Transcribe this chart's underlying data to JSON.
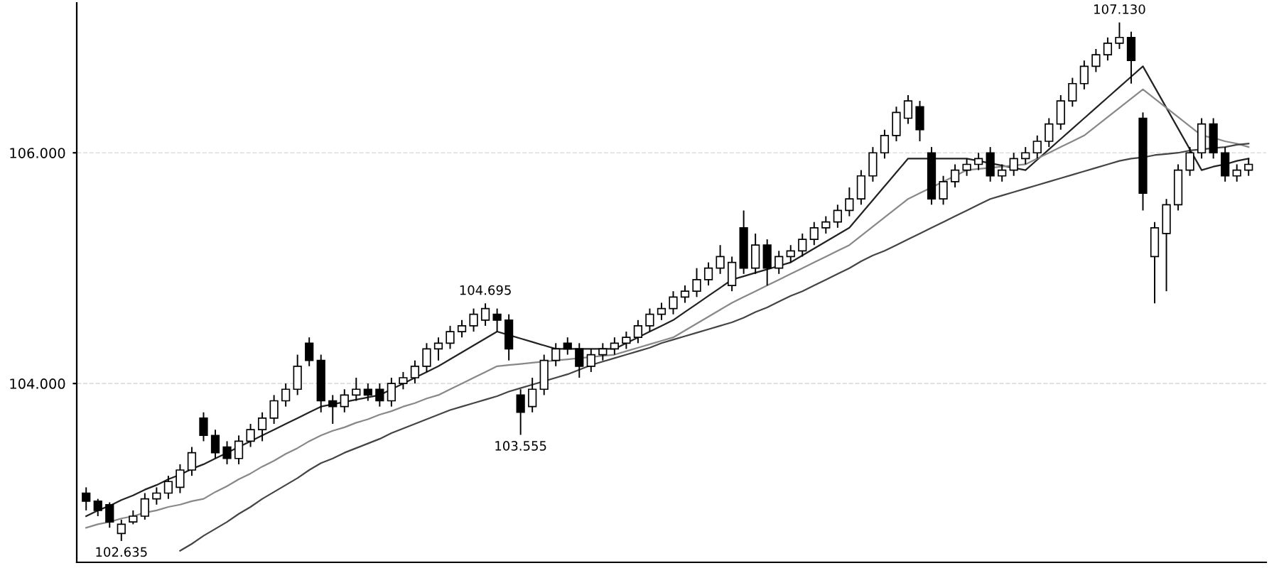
{
  "chart_data": {
    "type": "candlestick",
    "categories": [
      null,
      null,
      null,
      null,
      null,
      null,
      null,
      null,
      null,
      null,
      null,
      null,
      null,
      null,
      null,
      null,
      null,
      null,
      null,
      null,
      null,
      null,
      null,
      null,
      null,
      null,
      null,
      null,
      null,
      null,
      null,
      null,
      null,
      null,
      null,
      null,
      null,
      null,
      null,
      null,
      null,
      null,
      null,
      null,
      null,
      null,
      null,
      null,
      null,
      null,
      null,
      null,
      null,
      null,
      null,
      null,
      null,
      null,
      null,
      null,
      null,
      null,
      null,
      null,
      null,
      null,
      null,
      null,
      null,
      null,
      null,
      null,
      null,
      null,
      null,
      null,
      null,
      null,
      null,
      null,
      null,
      null,
      null,
      null,
      null,
      null,
      null,
      null,
      null,
      null,
      null,
      null,
      null,
      null,
      null,
      null,
      null,
      null,
      null,
      null
    ],
    "color": "#000000",
    "ohlc": [
      [
        103.05,
        103.1,
        102.9,
        102.98
      ],
      [
        102.98,
        103.0,
        102.85,
        102.9
      ],
      [
        102.95,
        102.97,
        102.75,
        102.8
      ],
      [
        102.7,
        102.82,
        102.635,
        102.78
      ],
      [
        102.8,
        102.9,
        102.78,
        102.85
      ],
      [
        102.85,
        103.05,
        102.82,
        103.0
      ],
      [
        103.0,
        103.1,
        102.95,
        103.05
      ],
      [
        103.05,
        103.2,
        103.0,
        103.15
      ],
      [
        103.1,
        103.3,
        103.05,
        103.25
      ],
      [
        103.25,
        103.45,
        103.2,
        103.4
      ],
      [
        103.7,
        103.75,
        103.5,
        103.55
      ],
      [
        103.55,
        103.6,
        103.35,
        103.4
      ],
      [
        103.45,
        103.5,
        103.3,
        103.35
      ],
      [
        103.35,
        103.55,
        103.3,
        103.5
      ],
      [
        103.5,
        103.65,
        103.45,
        103.6
      ],
      [
        103.6,
        103.75,
        103.5,
        103.7
      ],
      [
        103.7,
        103.9,
        103.65,
        103.85
      ],
      [
        103.85,
        104.0,
        103.8,
        103.95
      ],
      [
        103.95,
        104.25,
        103.9,
        104.15
      ],
      [
        104.35,
        104.4,
        104.15,
        104.2
      ],
      [
        104.2,
        104.25,
        103.75,
        103.85
      ],
      [
        103.85,
        103.9,
        103.65,
        103.8
      ],
      [
        103.8,
        103.95,
        103.75,
        103.9
      ],
      [
        103.9,
        104.05,
        103.85,
        103.95
      ],
      [
        103.95,
        104.0,
        103.85,
        103.9
      ],
      [
        103.95,
        104.0,
        103.8,
        103.85
      ],
      [
        103.85,
        104.05,
        103.8,
        104.0
      ],
      [
        104.0,
        104.1,
        103.95,
        104.05
      ],
      [
        104.05,
        104.2,
        104.0,
        104.15
      ],
      [
        104.15,
        104.35,
        104.1,
        104.3
      ],
      [
        104.3,
        104.4,
        104.2,
        104.35
      ],
      [
        104.35,
        104.5,
        104.3,
        104.45
      ],
      [
        104.45,
        104.55,
        104.4,
        104.5
      ],
      [
        104.5,
        104.65,
        104.45,
        104.6
      ],
      [
        104.55,
        104.695,
        104.5,
        104.65
      ],
      [
        104.6,
        104.65,
        104.45,
        104.55
      ],
      [
        104.55,
        104.6,
        104.2,
        104.3
      ],
      [
        103.9,
        103.95,
        103.555,
        103.75
      ],
      [
        103.8,
        104.05,
        103.75,
        103.95
      ],
      [
        103.95,
        104.25,
        103.9,
        104.2
      ],
      [
        104.2,
        104.35,
        104.15,
        104.3
      ],
      [
        104.35,
        104.4,
        104.25,
        104.3
      ],
      [
        104.3,
        104.35,
        104.05,
        104.15
      ],
      [
        104.15,
        104.3,
        104.1,
        104.25
      ],
      [
        104.25,
        104.35,
        104.2,
        104.3
      ],
      [
        104.3,
        104.4,
        104.25,
        104.35
      ],
      [
        104.35,
        104.45,
        104.3,
        104.4
      ],
      [
        104.4,
        104.55,
        104.35,
        104.5
      ],
      [
        104.5,
        104.65,
        104.45,
        104.6
      ],
      [
        104.6,
        104.7,
        104.55,
        104.65
      ],
      [
        104.65,
        104.8,
        104.6,
        104.75
      ],
      [
        104.75,
        104.85,
        104.7,
        104.8
      ],
      [
        104.8,
        105.0,
        104.75,
        104.9
      ],
      [
        104.9,
        105.05,
        104.85,
        105.0
      ],
      [
        105.0,
        105.2,
        104.95,
        105.1
      ],
      [
        104.85,
        105.1,
        104.8,
        105.05
      ],
      [
        105.35,
        105.5,
        104.95,
        105.0
      ],
      [
        105.0,
        105.3,
        104.95,
        105.2
      ],
      [
        105.2,
        105.25,
        104.85,
        105.0
      ],
      [
        105.0,
        105.15,
        104.95,
        105.1
      ],
      [
        105.1,
        105.2,
        105.05,
        105.15
      ],
      [
        105.15,
        105.3,
        105.1,
        105.25
      ],
      [
        105.25,
        105.4,
        105.2,
        105.35
      ],
      [
        105.35,
        105.45,
        105.3,
        105.4
      ],
      [
        105.4,
        105.55,
        105.35,
        105.5
      ],
      [
        105.5,
        105.7,
        105.45,
        105.6
      ],
      [
        105.6,
        105.85,
        105.55,
        105.8
      ],
      [
        105.8,
        106.05,
        105.75,
        106.0
      ],
      [
        106.0,
        106.2,
        105.95,
        106.15
      ],
      [
        106.15,
        106.4,
        106.1,
        106.35
      ],
      [
        106.3,
        106.5,
        106.25,
        106.45
      ],
      [
        106.4,
        106.45,
        106.1,
        106.2
      ],
      [
        106.0,
        106.05,
        105.55,
        105.6
      ],
      [
        105.6,
        105.8,
        105.55,
        105.75
      ],
      [
        105.75,
        105.9,
        105.7,
        105.85
      ],
      [
        105.85,
        105.95,
        105.8,
        105.9
      ],
      [
        105.9,
        106.0,
        105.85,
        105.95
      ],
      [
        106.0,
        106.05,
        105.75,
        105.8
      ],
      [
        105.8,
        105.9,
        105.75,
        105.85
      ],
      [
        105.85,
        106.0,
        105.8,
        105.95
      ],
      [
        105.95,
        106.05,
        105.9,
        106.0
      ],
      [
        106.0,
        106.15,
        105.95,
        106.1
      ],
      [
        106.1,
        106.3,
        106.05,
        106.25
      ],
      [
        106.25,
        106.5,
        106.2,
        106.45
      ],
      [
        106.45,
        106.65,
        106.4,
        106.6
      ],
      [
        106.6,
        106.8,
        106.55,
        106.75
      ],
      [
        106.75,
        106.9,
        106.7,
        106.85
      ],
      [
        106.85,
        107.0,
        106.8,
        106.95
      ],
      [
        106.95,
        107.13,
        106.9,
        107.0
      ],
      [
        107.0,
        107.05,
        106.6,
        106.8
      ],
      [
        106.3,
        106.35,
        105.5,
        105.65
      ],
      [
        105.1,
        105.4,
        104.695,
        105.35
      ],
      [
        105.3,
        105.6,
        104.8,
        105.55
      ],
      [
        105.55,
        105.9,
        105.5,
        105.85
      ],
      [
        105.85,
        106.05,
        105.8,
        106.0
      ],
      [
        106.0,
        106.3,
        105.95,
        106.25
      ],
      [
        106.25,
        106.3,
        105.95,
        106.0
      ],
      [
        106.0,
        106.05,
        105.75,
        105.8
      ],
      [
        105.8,
        105.9,
        105.75,
        105.85
      ],
      [
        105.85,
        105.95,
        105.8,
        105.9
      ]
    ],
    "series": [
      {
        "type": "line",
        "color": "#222222",
        "values": [
          102.85,
          102.9,
          102.94,
          102.99,
          103.03,
          103.08,
          103.12,
          103.17,
          103.21,
          103.26,
          103.3,
          103.35,
          103.4,
          103.45,
          103.5,
          103.55,
          103.6,
          103.65,
          103.7,
          103.75,
          103.8,
          103.82,
          103.84,
          103.86,
          103.88,
          103.9,
          103.95,
          104.0,
          104.05,
          104.1,
          104.15,
          104.21,
          104.27,
          104.33,
          104.39,
          104.45,
          104.42,
          104.39,
          104.36,
          104.33,
          104.3,
          104.3,
          104.3,
          104.3,
          104.3,
          104.3,
          104.35,
          104.4,
          104.45,
          104.5,
          104.55,
          104.62,
          104.69,
          104.76,
          104.83,
          104.9,
          104.93,
          104.96,
          104.99,
          105.02,
          105.05,
          105.11,
          105.17,
          105.23,
          105.29,
          105.35,
          105.47,
          105.59,
          105.71,
          105.83,
          105.95,
          105.95,
          105.95,
          105.95,
          105.95,
          105.95,
          105.93,
          105.91,
          105.89,
          105.87,
          105.85,
          105.94,
          106.03,
          106.12,
          106.21,
          106.3,
          106.39,
          106.48,
          106.57,
          106.66,
          106.75,
          106.57,
          106.39,
          106.21,
          106.03,
          105.85,
          105.88,
          105.9,
          105.93,
          105.95
        ]
      },
      {
        "type": "line",
        "color": "#888888",
        "values": [
          102.75,
          102.78,
          102.8,
          102.83,
          102.85,
          102.88,
          102.9,
          102.93,
          102.95,
          102.98,
          103.0,
          103.06,
          103.11,
          103.17,
          103.22,
          103.28,
          103.33,
          103.39,
          103.44,
          103.5,
          103.55,
          103.59,
          103.62,
          103.66,
          103.69,
          103.73,
          103.76,
          103.8,
          103.83,
          103.87,
          103.9,
          103.95,
          104.0,
          104.05,
          104.1,
          104.15,
          104.16,
          104.17,
          104.18,
          104.19,
          104.2,
          104.21,
          104.22,
          104.23,
          104.24,
          104.25,
          104.28,
          104.31,
          104.34,
          104.37,
          104.4,
          104.46,
          104.52,
          104.58,
          104.64,
          104.7,
          104.75,
          104.8,
          104.85,
          104.9,
          104.95,
          105.0,
          105.05,
          105.1,
          105.15,
          105.2,
          105.28,
          105.36,
          105.44,
          105.52,
          105.6,
          105.65,
          105.7,
          105.75,
          105.8,
          105.85,
          105.86,
          105.87,
          105.88,
          105.89,
          105.9,
          105.95,
          106.0,
          106.05,
          106.1,
          106.15,
          106.23,
          106.31,
          106.39,
          106.47,
          106.55,
          106.47,
          106.39,
          106.31,
          106.23,
          106.15,
          106.13,
          106.1,
          106.08,
          106.05
        ]
      },
      {
        "type": "line",
        "color": "#444444",
        "values": [
          null,
          null,
          null,
          null,
          null,
          null,
          null,
          null,
          102.55,
          102.61,
          102.68,
          102.74,
          102.8,
          102.87,
          102.93,
          103.0,
          103.06,
          103.12,
          103.18,
          103.25,
          103.31,
          103.35,
          103.4,
          103.44,
          103.48,
          103.52,
          103.57,
          103.61,
          103.65,
          103.69,
          103.73,
          103.77,
          103.8,
          103.83,
          103.86,
          103.89,
          103.93,
          103.96,
          103.99,
          104.02,
          104.05,
          104.08,
          104.12,
          104.16,
          104.19,
          104.22,
          104.25,
          104.28,
          104.31,
          104.35,
          104.38,
          104.41,
          104.44,
          104.47,
          104.5,
          104.53,
          104.57,
          104.62,
          104.66,
          104.71,
          104.76,
          104.8,
          104.85,
          104.9,
          104.95,
          105.0,
          105.06,
          105.11,
          105.15,
          105.2,
          105.25,
          105.3,
          105.35,
          105.4,
          105.45,
          105.5,
          105.55,
          105.6,
          105.63,
          105.66,
          105.69,
          105.72,
          105.75,
          105.78,
          105.81,
          105.84,
          105.87,
          105.9,
          105.93,
          105.95,
          105.96,
          105.98,
          105.99,
          106.0,
          106.02,
          106.03,
          106.04,
          106.05,
          106.07,
          106.08
        ]
      }
    ],
    "ylim": [
      102.45,
      107.3
    ],
    "yticks": [
      {
        "value": 104,
        "label": "104.000"
      },
      {
        "value": 106,
        "label": "106.000"
      }
    ],
    "tick_labels": "y",
    "grid": "y",
    "annotations": [
      {
        "text": "107.130",
        "y": 107.13
      },
      {
        "text": "104.695",
        "y": 104.695
      },
      {
        "text": "103.555",
        "y": 103.555
      },
      {
        "text": "102.635",
        "y": 102.635
      }
    ]
  }
}
